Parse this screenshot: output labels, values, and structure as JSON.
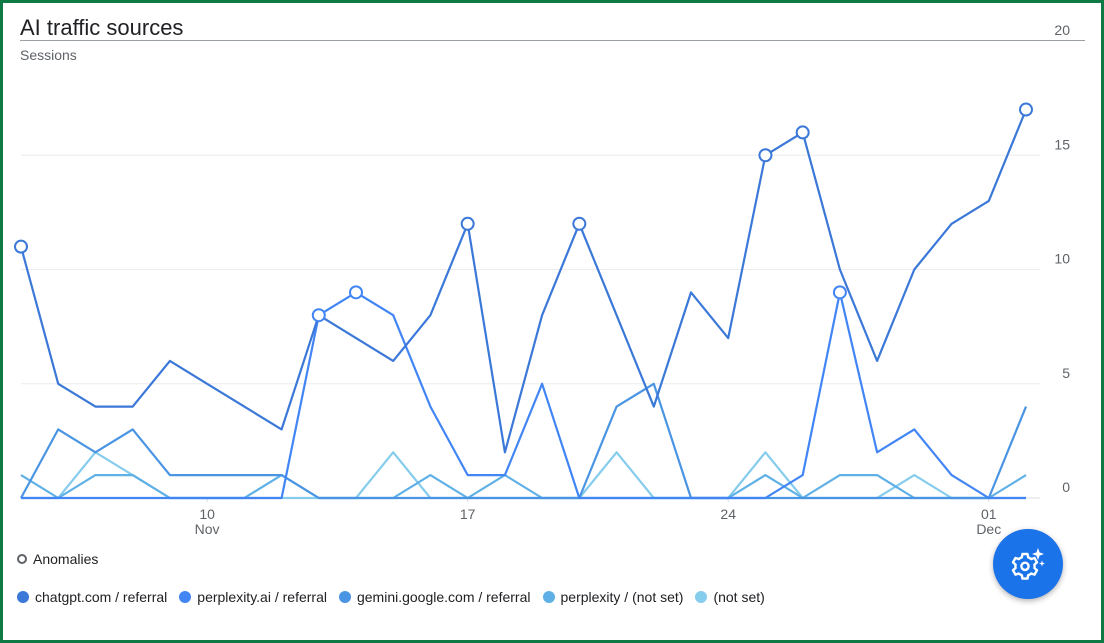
{
  "colors": {
    "accent": "#1a73e8",
    "frame": "#0f7a43",
    "series": [
      "#3b78d8",
      "#4285f4",
      "#4a95e3",
      "#5fb0e6",
      "#86ccec"
    ]
  },
  "fab": {
    "icon": "settings-sparkle-icon"
  },
  "anomalies_label": "Anomalies",
  "chart_data": {
    "type": "line",
    "title": "AI traffic sources",
    "ylabel": "Sessions",
    "xlabel": "",
    "ylim": [
      0,
      20
    ],
    "yticks": [
      0,
      5,
      10,
      15,
      20
    ],
    "x": [
      "Nov 5",
      "Nov 6",
      "Nov 7",
      "Nov 8",
      "Nov 9",
      "Nov 10",
      "Nov 11",
      "Nov 12",
      "Nov 13",
      "Nov 14",
      "Nov 15",
      "Nov 16",
      "Nov 17",
      "Nov 18",
      "Nov 19",
      "Nov 20",
      "Nov 21",
      "Nov 22",
      "Nov 23",
      "Nov 24",
      "Nov 25",
      "Nov 26",
      "Nov 27",
      "Nov 28",
      "Nov 29",
      "Nov 30",
      "Dec 1",
      "Dec 2"
    ],
    "xticks": [
      {
        "index": 5,
        "label": "10",
        "sub": "Nov"
      },
      {
        "index": 12,
        "label": "17",
        "sub": ""
      },
      {
        "index": 19,
        "label": "24",
        "sub": ""
      },
      {
        "index": 26,
        "label": "01",
        "sub": "Dec"
      }
    ],
    "grid": true,
    "legend_position": "bottom",
    "series": [
      {
        "name": "chatgpt.com / referral",
        "values": [
          11,
          5,
          4,
          4,
          6,
          5,
          4,
          3,
          8,
          7,
          6,
          8,
          12,
          2,
          8,
          12,
          8,
          4,
          9,
          7,
          15,
          16,
          10,
          6,
          10,
          12,
          13,
          17
        ]
      },
      {
        "name": "perplexity.ai / referral",
        "values": [
          0,
          0,
          0,
          0,
          0,
          0,
          0,
          0,
          8,
          9,
          8,
          4,
          1,
          1,
          5,
          0,
          0,
          0,
          0,
          0,
          0,
          1,
          9,
          2,
          3,
          1,
          0,
          0
        ]
      },
      {
        "name": "gemini.google.com / referral",
        "values": [
          0,
          3,
          2,
          3,
          1,
          1,
          1,
          1,
          0,
          0,
          0,
          0,
          0,
          0,
          0,
          0,
          4,
          5,
          0,
          0,
          0,
          0,
          0,
          0,
          0,
          0,
          0,
          4
        ]
      },
      {
        "name": "perplexity / (not set)",
        "values": [
          1,
          0,
          1,
          1,
          0,
          0,
          0,
          1,
          0,
          0,
          0,
          1,
          0,
          1,
          0,
          0,
          0,
          0,
          0,
          0,
          1,
          0,
          1,
          1,
          0,
          0,
          0,
          1
        ]
      },
      {
        "name": "(not set)",
        "values": [
          0,
          0,
          2,
          1,
          0,
          0,
          0,
          0,
          0,
          0,
          2,
          0,
          0,
          0,
          0,
          0,
          2,
          0,
          0,
          0,
          2,
          0,
          0,
          0,
          1,
          0,
          0,
          0
        ]
      }
    ],
    "anomalies": [
      {
        "series": 0,
        "index": 0
      },
      {
        "series": 0,
        "index": 12
      },
      {
        "series": 0,
        "index": 15
      },
      {
        "series": 0,
        "index": 20
      },
      {
        "series": 0,
        "index": 21
      },
      {
        "series": 0,
        "index": 27
      },
      {
        "series": 1,
        "index": 8
      },
      {
        "series": 1,
        "index": 9
      },
      {
        "series": 1,
        "index": 22
      }
    ]
  }
}
